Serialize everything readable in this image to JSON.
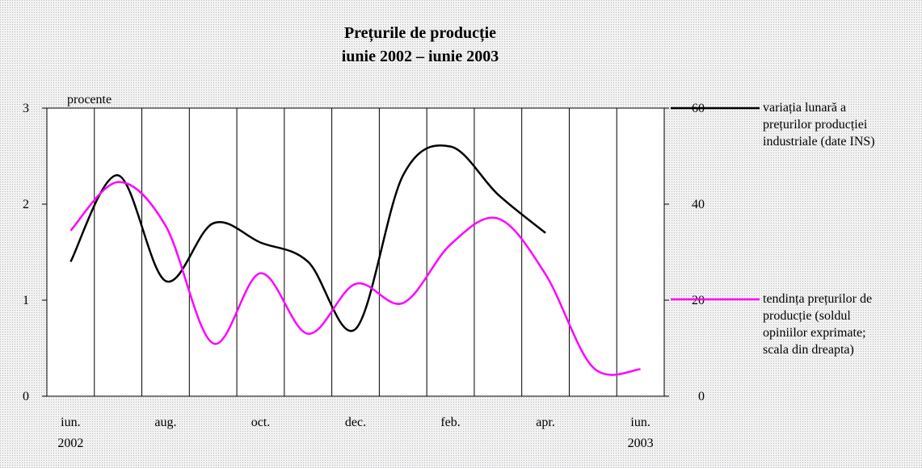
{
  "chart_data": {
    "type": "line",
    "title": "Prețurile de producție",
    "subtitle": "iunie 2002 – iunie 2003",
    "y_label": "procente",
    "categories": [
      "iun. 2002",
      null,
      "aug.",
      null,
      "oct.",
      null,
      "dec.",
      null,
      "feb.",
      null,
      "apr.",
      null,
      "iun. 2003"
    ],
    "series": [
      {
        "name": "variația lunară a prețurilor producției industriale (date INS)",
        "color": "#000000",
        "values": [
          1.4,
          2.3,
          1.2,
          1.8,
          1.6,
          1.4,
          0.7,
          2.3,
          2.6,
          2.1,
          1.7,
          null,
          null
        ]
      },
      {
        "name": "tendința prețurilor de producție (soldul opiniilor exprimate; scala din dreapta)",
        "color": "#ff00ff",
        "axis": "y2",
        "values": [
          34.5,
          44.6,
          35.5,
          11,
          25.6,
          13,
          23.4,
          19.4,
          31.6,
          37,
          25.4,
          6,
          5.6
        ]
      }
    ],
    "ylim": [
      0,
      3
    ],
    "yticks": [
      0,
      1,
      2,
      3
    ],
    "y2lim": [
      0,
      60
    ],
    "y2ticks": [
      0,
      20,
      40,
      60
    ],
    "grid": "x",
    "smooth": true
  }
}
